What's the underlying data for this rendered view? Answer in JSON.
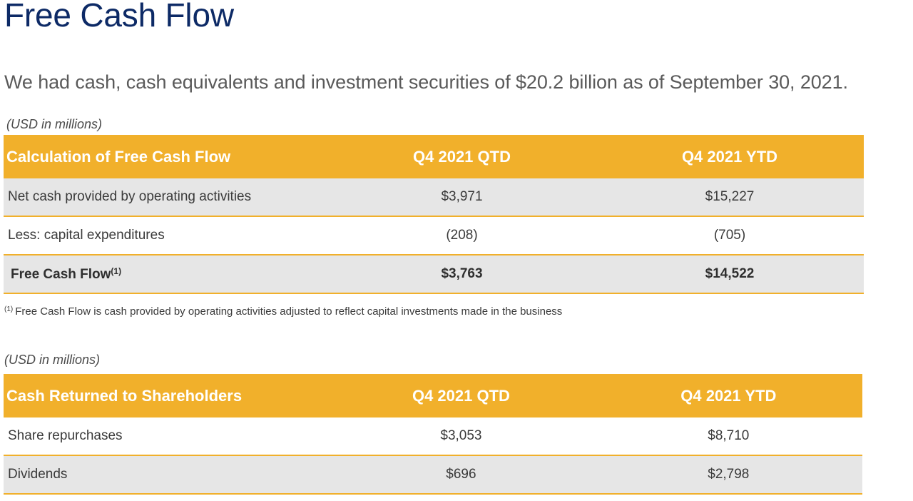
{
  "title": "Free Cash Flow",
  "subtitle": "We had cash, cash equivalents and investment securities of $20.2 billion as of September 30, 2021.",
  "units_label": "(USD in millions)",
  "fcf_table": {
    "headers": [
      "Calculation of Free Cash Flow",
      "Q4 2021 QTD",
      "Q4 2021 YTD"
    ],
    "rows": [
      {
        "label": "Net cash provided by operating activities",
        "qtd": "$3,971",
        "ytd": "$15,227"
      },
      {
        "label": "Less: capital expenditures",
        "qtd": "(208)",
        "ytd": "(705)"
      },
      {
        "label": "Free Cash Flow",
        "label_sup": "(1)",
        "qtd": "$3,763",
        "ytd": "$14,522"
      }
    ]
  },
  "footnote": {
    "marker": "(1)",
    "text": "Free Cash Flow is cash provided by operating activities adjusted to reflect capital investments made in the business"
  },
  "returns_table": {
    "headers": [
      "Cash Returned to Shareholders",
      "Q4 2021 QTD",
      "Q4 2021 YTD"
    ],
    "rows": [
      {
        "label": "Share repurchases",
        "qtd": "$3,053",
        "ytd": "$8,710"
      },
      {
        "label": "Dividends",
        "qtd": "$696",
        "ytd": "$2,798"
      }
    ]
  },
  "colors": {
    "title": "#0d2a66",
    "header_bg": "#f1b02b",
    "row_shade": "#e6e6e6"
  }
}
